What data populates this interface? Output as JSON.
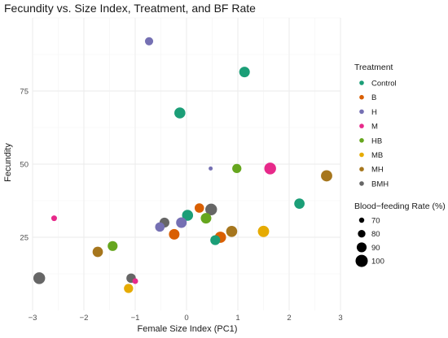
{
  "chart_data": {
    "type": "scatter",
    "title": "Fecundity vs. Size Index, Treatment, and BF Rate",
    "xlabel": "Female Size Index (PC1)",
    "ylabel": "Fecundity",
    "xlim": [
      -3,
      3
    ],
    "ylim": [
      0,
      100
    ],
    "x_ticks": [
      -3,
      -2,
      -1,
      0,
      1,
      2,
      3
    ],
    "y_ticks": [
      25,
      50,
      75
    ],
    "x_tick_labels": [
      "−3",
      "−2",
      "−1",
      "0",
      "1",
      "2",
      "3"
    ],
    "y_tick_labels": [
      "25",
      "50",
      "75"
    ],
    "grid": true,
    "color_legend": {
      "title": "Treatment",
      "placement": "right",
      "entries": [
        {
          "name": "Control",
          "color": "#1b9e77"
        },
        {
          "name": "B",
          "color": "#d95f02"
        },
        {
          "name": "H",
          "color": "#7570b3"
        },
        {
          "name": "M",
          "color": "#e7298a"
        },
        {
          "name": "HB",
          "color": "#66a61e"
        },
        {
          "name": "MB",
          "color": "#e6ab02"
        },
        {
          "name": "MH",
          "color": "#a6761d"
        },
        {
          "name": "BMH",
          "color": "#666666"
        }
      ]
    },
    "size_legend": {
      "title": "Blood−feeding Rate (%)",
      "placement": "right",
      "values": [
        70,
        80,
        90,
        100
      ],
      "labels": [
        "70",
        "80",
        "90",
        "100"
      ]
    },
    "points": [
      {
        "treatment": "Control",
        "x": 1.13,
        "y": 81.5,
        "bf": 93
      },
      {
        "treatment": "Control",
        "x": -0.13,
        "y": 67.5,
        "bf": 95
      },
      {
        "treatment": "Control",
        "x": 2.2,
        "y": 36.5,
        "bf": 92
      },
      {
        "treatment": "Control",
        "x": 0.02,
        "y": 32.5,
        "bf": 95
      },
      {
        "treatment": "Control",
        "x": 0.56,
        "y": 24,
        "bf": 90
      },
      {
        "treatment": "B",
        "x": 0.25,
        "y": 35,
        "bf": 88
      },
      {
        "treatment": "B",
        "x": -0.24,
        "y": 26,
        "bf": 93
      },
      {
        "treatment": "B",
        "x": 0.66,
        "y": 25,
        "bf": 96
      },
      {
        "treatment": "H",
        "x": -0.73,
        "y": 92,
        "bf": 83
      },
      {
        "treatment": "H",
        "x": 0.47,
        "y": 48.5,
        "bf": 65
      },
      {
        "treatment": "H",
        "x": -0.1,
        "y": 30,
        "bf": 93
      },
      {
        "treatment": "H",
        "x": -0.52,
        "y": 28.5,
        "bf": 88
      },
      {
        "treatment": "M",
        "x": 1.63,
        "y": 48.5,
        "bf": 98
      },
      {
        "treatment": "M",
        "x": -2.58,
        "y": 31.5,
        "bf": 72
      },
      {
        "treatment": "M",
        "x": -1.0,
        "y": 10,
        "bf": 72
      },
      {
        "treatment": "HB",
        "x": 0.98,
        "y": 48.5,
        "bf": 87
      },
      {
        "treatment": "HB",
        "x": 0.38,
        "y": 31.5,
        "bf": 93
      },
      {
        "treatment": "HB",
        "x": -1.44,
        "y": 22,
        "bf": 90
      },
      {
        "treatment": "MB",
        "x": 1.5,
        "y": 27,
        "bf": 96
      },
      {
        "treatment": "MB",
        "x": -1.13,
        "y": 7.5,
        "bf": 87
      },
      {
        "treatment": "MH",
        "x": 2.73,
        "y": 46,
        "bf": 96
      },
      {
        "treatment": "MH",
        "x": 0.88,
        "y": 27,
        "bf": 95
      },
      {
        "treatment": "MH",
        "x": -1.73,
        "y": 20,
        "bf": 92
      },
      {
        "treatment": "BMH",
        "x": 0.48,
        "y": 34.5,
        "bf": 98
      },
      {
        "treatment": "BMH",
        "x": -0.43,
        "y": 30,
        "bf": 90
      },
      {
        "treatment": "BMH",
        "x": -2.87,
        "y": 11,
        "bf": 98
      },
      {
        "treatment": "BMH",
        "x": -1.08,
        "y": 11,
        "bf": 88
      }
    ]
  }
}
